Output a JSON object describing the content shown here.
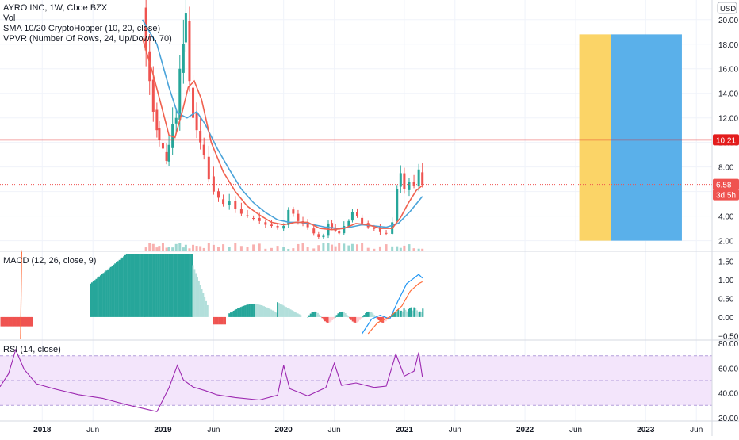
{
  "header": {
    "symbol_line": "AYRO INC, 1W, Cboe BZX",
    "vol_line": "Vol",
    "sma_line": "SMA 10/20 CryptoHopper (10, 20, close)",
    "vpvr_line": "VPVR (Number Of Rows, 24, Up/Down, 70)",
    "currency_badge": "USD"
  },
  "price_labels": {
    "current_line": "10.21",
    "last_price": "6.58",
    "countdown": "3d 5h"
  },
  "colors": {
    "up": "#26a69a",
    "down": "#ef5350",
    "sma_fast": "#f0614f",
    "sma_slow": "#4aa3d9",
    "hline": "#e31c1c",
    "vpvr_up": "#fbd467",
    "vpvr_down": "#5ab0ea",
    "macd_line": "#2196f3",
    "signal_line": "#ff6d3b",
    "rsi_line": "#9c27b0",
    "rsi_band": "#f3e5fb"
  },
  "chart_data": [
    {
      "type": "candlestick",
      "title": "AYRO INC, 1W, Cboe BZX",
      "x_ticks": [
        "2018",
        "Jun",
        "2019",
        "Jun",
        "2020",
        "Jun",
        "2021",
        "Jun",
        "2022",
        "Jun",
        "2023",
        "Jun"
      ],
      "x_tick_dates": [
        2018.0,
        2018.42,
        2019.0,
        2019.42,
        2020.0,
        2020.42,
        2021.0,
        2021.42,
        2022.0,
        2022.42,
        2023.0,
        2023.42
      ],
      "y_ticks": [
        2,
        4,
        6,
        8,
        10,
        12,
        14,
        16,
        18,
        20
      ],
      "ylim": [
        1.2,
        21.6
      ],
      "xlim": [
        2017.65,
        2023.55
      ],
      "horizontal_line": 10.21,
      "last_price": 6.58,
      "close_series": [
        [
          2018.83,
          21.0
        ],
        [
          2018.86,
          17.5
        ],
        [
          2018.89,
          15.0
        ],
        [
          2018.92,
          12.5
        ],
        [
          2018.95,
          11.0
        ],
        [
          2018.97,
          10.2
        ],
        [
          2019.0,
          9.5
        ],
        [
          2019.03,
          8.5
        ],
        [
          2019.05,
          9.8
        ],
        [
          2019.08,
          11.5
        ],
        [
          2019.11,
          12.0
        ],
        [
          2019.14,
          16.0
        ],
        [
          2019.17,
          18.0
        ],
        [
          2019.19,
          20.5
        ],
        [
          2019.22,
          15.0
        ],
        [
          2019.25,
          12.0
        ],
        [
          2019.28,
          11.0
        ],
        [
          2019.31,
          10.0
        ],
        [
          2019.34,
          9.0
        ],
        [
          2019.38,
          7.0
        ],
        [
          2019.42,
          6.0
        ],
        [
          2019.46,
          5.5
        ],
        [
          2019.5,
          5.0
        ],
        [
          2019.55,
          5.2
        ],
        [
          2019.6,
          4.6
        ],
        [
          2019.65,
          4.2
        ],
        [
          2019.7,
          4.0
        ],
        [
          2019.75,
          3.8
        ],
        [
          2019.8,
          3.6
        ],
        [
          2019.85,
          3.3
        ],
        [
          2019.9,
          3.2
        ],
        [
          2019.95,
          3.1
        ],
        [
          2020.0,
          3.2
        ],
        [
          2020.04,
          4.5
        ],
        [
          2020.08,
          4.2
        ],
        [
          2020.12,
          3.6
        ],
        [
          2020.16,
          3.4
        ],
        [
          2020.2,
          3.1
        ],
        [
          2020.25,
          2.6
        ],
        [
          2020.29,
          2.3
        ],
        [
          2020.33,
          2.4
        ],
        [
          2020.37,
          3.4
        ],
        [
          2020.4,
          3.0
        ],
        [
          2020.43,
          2.8
        ],
        [
          2020.46,
          2.6
        ],
        [
          2020.5,
          3.2
        ],
        [
          2020.54,
          3.6
        ],
        [
          2020.57,
          4.3
        ],
        [
          2020.61,
          4.0
        ],
        [
          2020.65,
          3.4
        ],
        [
          2020.7,
          3.1
        ],
        [
          2020.75,
          3.0
        ],
        [
          2020.8,
          2.7
        ],
        [
          2020.85,
          2.6
        ],
        [
          2020.9,
          3.5
        ],
        [
          2020.94,
          6.2
        ],
        [
          2020.97,
          7.5
        ],
        [
          2021.0,
          6.2
        ],
        [
          2021.04,
          6.8
        ],
        [
          2021.08,
          6.5
        ],
        [
          2021.12,
          7.8
        ],
        [
          2021.15,
          6.58
        ]
      ],
      "sma_fast_series": [
        [
          2018.83,
          18.5
        ],
        [
          2018.92,
          15.5
        ],
        [
          2019.0,
          12.5
        ],
        [
          2019.05,
          10.6
        ],
        [
          2019.1,
          10.4
        ],
        [
          2019.16,
          12.5
        ],
        [
          2019.21,
          14.5
        ],
        [
          2019.26,
          15.0
        ],
        [
          2019.32,
          13.5
        ],
        [
          2019.4,
          10.0
        ],
        [
          2019.5,
          7.6
        ],
        [
          2019.6,
          6.0
        ],
        [
          2019.7,
          4.8
        ],
        [
          2019.8,
          4.1
        ],
        [
          2019.9,
          3.5
        ],
        [
          2020.0,
          3.3
        ],
        [
          2020.1,
          3.5
        ],
        [
          2020.2,
          3.5
        ],
        [
          2020.3,
          3.0
        ],
        [
          2020.4,
          2.9
        ],
        [
          2020.5,
          3.0
        ],
        [
          2020.6,
          3.4
        ],
        [
          2020.7,
          3.3
        ],
        [
          2020.8,
          3.0
        ],
        [
          2020.9,
          3.0
        ],
        [
          2020.97,
          3.9
        ],
        [
          2021.03,
          5.0
        ],
        [
          2021.1,
          6.1
        ],
        [
          2021.15,
          6.5
        ]
      ],
      "sma_slow_series": [
        [
          2018.83,
          20.0
        ],
        [
          2018.95,
          18.0
        ],
        [
          2019.05,
          14.5
        ],
        [
          2019.12,
          12.4
        ],
        [
          2019.2,
          12.0
        ],
        [
          2019.28,
          12.5
        ],
        [
          2019.35,
          11.5
        ],
        [
          2019.45,
          9.5
        ],
        [
          2019.55,
          7.8
        ],
        [
          2019.65,
          6.2
        ],
        [
          2019.75,
          5.1
        ],
        [
          2019.85,
          4.3
        ],
        [
          2019.95,
          3.7
        ],
        [
          2020.05,
          3.5
        ],
        [
          2020.15,
          3.5
        ],
        [
          2020.25,
          3.3
        ],
        [
          2020.35,
          3.1
        ],
        [
          2020.45,
          3.0
        ],
        [
          2020.55,
          3.1
        ],
        [
          2020.65,
          3.3
        ],
        [
          2020.75,
          3.2
        ],
        [
          2020.85,
          3.1
        ],
        [
          2020.95,
          3.4
        ],
        [
          2021.05,
          4.4
        ],
        [
          2021.15,
          5.6
        ]
      ],
      "vpvr": {
        "price_range": [
          2.0,
          18.8
        ],
        "date_range": [
          2022.45,
          2023.3
        ],
        "up_fraction": 0.31
      }
    },
    {
      "type": "histogram",
      "title": "MACD (12, 26, close, 9)",
      "y_ticks": [
        -0.5,
        0.0,
        0.5,
        1.0,
        1.5
      ],
      "y_tick_labels": [
        "−0.50",
        "0.00",
        "0.50",
        "1.00",
        "1.50"
      ],
      "ylim": [
        -0.6,
        1.75
      ],
      "macd_series": [
        [
          2020.65,
          -0.45
        ],
        [
          2020.73,
          -0.05
        ],
        [
          2020.8,
          0.05
        ],
        [
          2020.88,
          -0.05
        ],
        [
          2020.95,
          0.45
        ],
        [
          2021.02,
          0.9
        ],
        [
          2021.08,
          1.05
        ],
        [
          2021.12,
          1.15
        ],
        [
          2021.15,
          1.05
        ]
      ],
      "signal_series": [
        [
          2020.7,
          -0.45
        ],
        [
          2020.78,
          -0.15
        ],
        [
          2020.88,
          0.0
        ],
        [
          2020.98,
          0.3
        ],
        [
          2021.05,
          0.7
        ],
        [
          2021.12,
          0.9
        ],
        [
          2021.15,
          0.95
        ]
      ]
    },
    {
      "type": "line",
      "title": "RSI (14, close)",
      "y_ticks": [
        20,
        40,
        60,
        80
      ],
      "y_tick_labels": [
        "20.00",
        "40.00",
        "60.00",
        "80.00"
      ],
      "ylim": [
        18,
        82
      ],
      "bands": [
        30,
        70
      ]
    }
  ]
}
